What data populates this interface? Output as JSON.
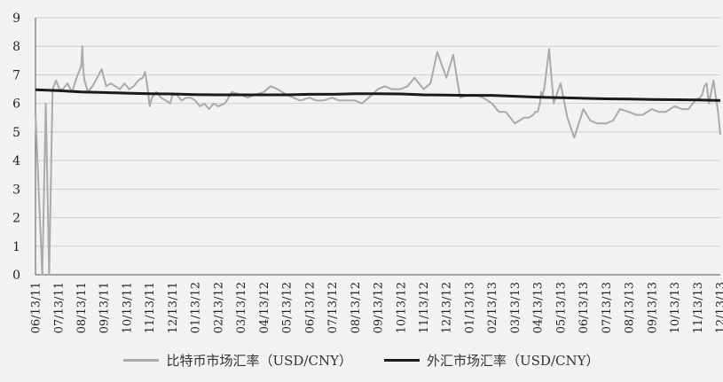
{
  "chart_data": {
    "type": "line",
    "ylim": [
      0,
      9
    ],
    "yticks": [
      0,
      1,
      2,
      3,
      4,
      5,
      6,
      7,
      8,
      9
    ],
    "categories": [
      "06/13/11",
      "07/13/11",
      "08/13/11",
      "09/13/11",
      "10/13/11",
      "11/13/11",
      "12/13/11",
      "01/13/12",
      "02/13/12",
      "03/13/12",
      "04/13/12",
      "05/13/12",
      "06/13/12",
      "07/13/12",
      "08/13/12",
      "09/13/12",
      "10/13/12",
      "11/13/12",
      "12/13/12",
      "01/13/13",
      "02/13/13",
      "03/13/13",
      "04/13/13",
      "05/13/13",
      "06/13/13",
      "07/13/13",
      "08/13/13",
      "09/13/13",
      "10/13/13",
      "11/13/13",
      "12/13/13"
    ],
    "grid": true,
    "legend_position": "bottom",
    "series": [
      {
        "name": "比特币市场汇率（USD/CNY）",
        "color": "#aaaaaa",
        "x": [
          0,
          0.3,
          0.45,
          0.6,
          0.75,
          0.9,
          1.05,
          1.2,
          1.4,
          1.6,
          1.8,
          2.0,
          2.05,
          2.1,
          2.15,
          2.3,
          2.5,
          2.7,
          2.9,
          3.0,
          3.1,
          3.3,
          3.5,
          3.7,
          3.9,
          4.0,
          4.1,
          4.3,
          4.5,
          4.7,
          4.8,
          4.9,
          5.0,
          5.1,
          5.3,
          5.5,
          5.7,
          5.9,
          6.0,
          6.2,
          6.4,
          6.6,
          6.8,
          7.0,
          7.2,
          7.4,
          7.6,
          7.8,
          8.0,
          8.3,
          8.6,
          9.0,
          9.3,
          9.6,
          10.0,
          10.3,
          10.6,
          11.0,
          11.3,
          11.6,
          12.0,
          12.3,
          12.6,
          13.0,
          13.3,
          13.6,
          14.0,
          14.3,
          14.6,
          15.0,
          15.3,
          15.6,
          16.0,
          16.3,
          16.6,
          17.0,
          17.3,
          17.6,
          18.0,
          18.3,
          18.6,
          19.0,
          19.3,
          19.6,
          20.0,
          20.3,
          20.6,
          21.0,
          21.2,
          21.4,
          21.6,
          21.8,
          21.9,
          22.0,
          22.1,
          22.15,
          22.2,
          22.3,
          22.5,
          22.7,
          23.0,
          23.3,
          23.6,
          24.0,
          24.3,
          24.6,
          25.0,
          25.3,
          25.6,
          26.0,
          26.3,
          26.6,
          27.0,
          27.3,
          27.6,
          28.0,
          28.3,
          28.6,
          28.9,
          29.1,
          29.2,
          29.3,
          29.4,
          29.5,
          29.7,
          29.9,
          30.0
        ],
        "values": [
          5.6,
          0,
          6.0,
          0,
          6.5,
          6.8,
          6.5,
          6.5,
          6.7,
          6.4,
          6.9,
          7.3,
          8.0,
          7.1,
          6.8,
          6.4,
          6.6,
          6.9,
          7.2,
          6.9,
          6.6,
          6.7,
          6.6,
          6.5,
          6.7,
          6.6,
          6.5,
          6.6,
          6.8,
          6.9,
          7.1,
          6.6,
          5.9,
          6.2,
          6.4,
          6.2,
          6.1,
          6.0,
          6.3,
          6.3,
          6.1,
          6.2,
          6.2,
          6.1,
          5.9,
          6.0,
          5.8,
          6.0,
          5.9,
          6.0,
          6.4,
          6.3,
          6.2,
          6.3,
          6.4,
          6.6,
          6.5,
          6.3,
          6.2,
          6.1,
          6.2,
          6.1,
          6.1,
          6.2,
          6.1,
          6.1,
          6.1,
          6.0,
          6.2,
          6.5,
          6.6,
          6.5,
          6.5,
          6.6,
          6.9,
          6.5,
          6.7,
          7.8,
          6.9,
          7.7,
          6.2,
          6.3,
          6.3,
          6.2,
          6.0,
          5.7,
          5.7,
          5.3,
          5.4,
          5.5,
          5.5,
          5.6,
          5.7,
          5.7,
          6.0,
          6.4,
          6.2,
          6.6,
          7.9,
          6.0,
          6.7,
          5.5,
          4.8,
          5.8,
          5.4,
          5.3,
          5.3,
          5.4,
          5.8,
          5.7,
          5.6,
          5.6,
          5.8,
          5.7,
          5.7,
          5.9,
          5.8,
          5.8,
          6.1,
          6.2,
          6.3,
          6.6,
          6.7,
          6.0,
          6.8,
          5.7,
          4.9
        ]
      },
      {
        "name": "外汇市场汇率（USD/CNY）",
        "color": "#1a1a1a",
        "x": [
          0,
          1,
          2,
          3,
          4,
          5,
          6,
          7,
          8,
          9,
          10,
          11,
          12,
          13,
          14,
          15,
          16,
          17,
          18,
          19,
          20,
          21,
          22,
          23,
          24,
          25,
          26,
          27,
          28,
          29,
          30
        ],
        "values": [
          6.48,
          6.45,
          6.4,
          6.38,
          6.36,
          6.34,
          6.33,
          6.31,
          6.3,
          6.3,
          6.3,
          6.3,
          6.32,
          6.32,
          6.34,
          6.34,
          6.33,
          6.3,
          6.29,
          6.28,
          6.28,
          6.25,
          6.22,
          6.2,
          6.18,
          6.16,
          6.15,
          6.14,
          6.13,
          6.12,
          6.1
        ]
      }
    ]
  }
}
